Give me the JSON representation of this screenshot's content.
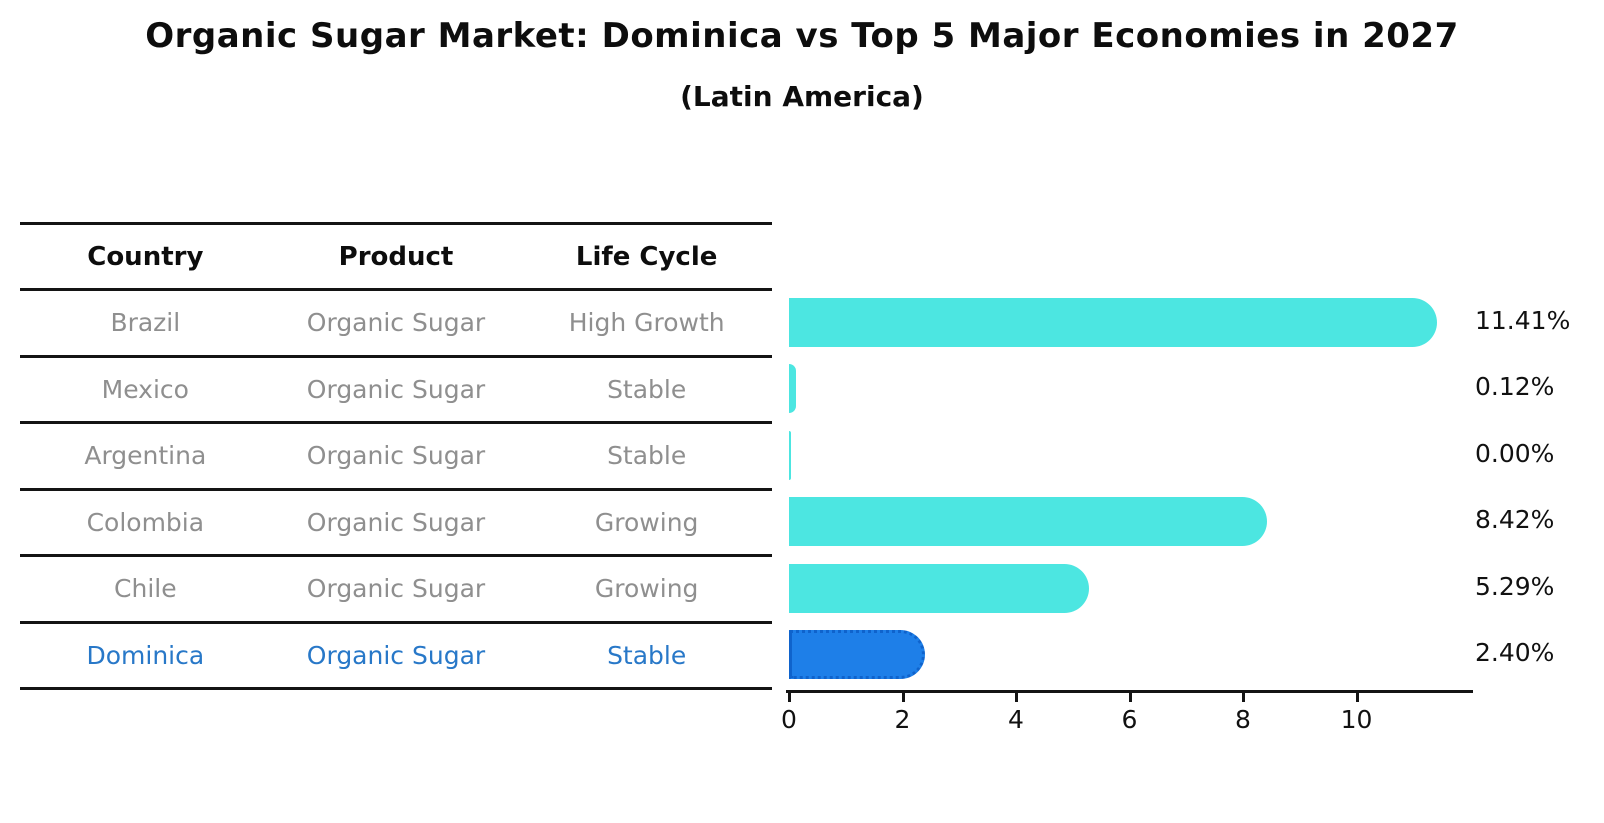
{
  "title": "Organic Sugar Market: Dominica vs Top 5 Major Economies in 2027",
  "subtitle": "(Latin America)",
  "table": {
    "headers": [
      "Country",
      "Product",
      "Life Cycle"
    ],
    "rows": [
      {
        "country": "Brazil",
        "product": "Organic Sugar",
        "life_cycle": "High Growth",
        "highlight": false
      },
      {
        "country": "Mexico",
        "product": "Organic Sugar",
        "life_cycle": "Stable",
        "highlight": false
      },
      {
        "country": "Argentina",
        "product": "Organic Sugar",
        "life_cycle": "Stable",
        "highlight": false
      },
      {
        "country": "Colombia",
        "product": "Organic Sugar",
        "life_cycle": "Growing",
        "highlight": false
      },
      {
        "country": "Chile",
        "product": "Organic Sugar",
        "life_cycle": "Growing",
        "highlight": false
      },
      {
        "country": "Dominica",
        "product": "Organic Sugar",
        "life_cycle": "Stable",
        "highlight": true
      }
    ]
  },
  "chart_data": {
    "type": "bar",
    "orientation": "horizontal",
    "categories": [
      "Brazil",
      "Mexico",
      "Argentina",
      "Colombia",
      "Chile",
      "Dominica"
    ],
    "values": [
      11.41,
      0.12,
      0.0,
      8.42,
      5.29,
      2.4
    ],
    "value_labels": [
      "11.41%",
      "0.12%",
      "0.00%",
      "8.42%",
      "5.29%",
      "2.40%"
    ],
    "title": "Organic Sugar Market: Dominica vs Top 5 Major Economies in 2027 (Latin America)",
    "xlabel": "",
    "ylabel": "",
    "xlim": [
      0,
      12
    ],
    "xticks": [
      0,
      2,
      4,
      6,
      8,
      10
    ],
    "grid": false,
    "legend": "none",
    "bar_color": "#4ce6e1",
    "highlight_bar_color": "#1e7fe8",
    "highlight_text_color": "#2878c8",
    "highlighted_category": "Dominica"
  }
}
